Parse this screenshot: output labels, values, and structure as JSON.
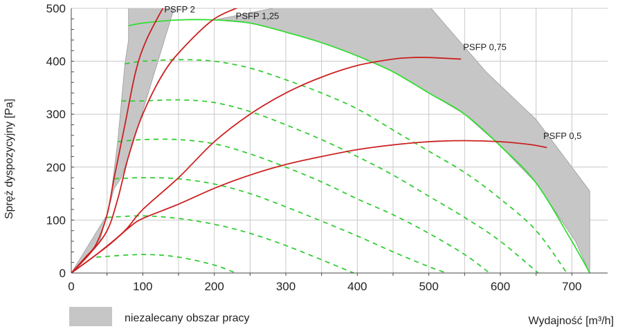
{
  "chart_data": {
    "type": "line",
    "xlabel": "Wydajność [m³/h]",
    "ylabel": "Spręż dyspozycyjny [Pa]",
    "xlim": [
      0,
      750
    ],
    "ylim": [
      0,
      500
    ],
    "x_ticks": [
      "0",
      "100",
      "200",
      "300",
      "400",
      "500",
      "600",
      "700"
    ],
    "y_ticks": [
      "0",
      "100",
      "200",
      "300",
      "400",
      "500"
    ],
    "grid": true,
    "colors": {
      "fan_max": "#33dd33",
      "fan_partial": "#33cc33",
      "psfp": "#cc1f1f",
      "region": "#c6c6c6",
      "grid": "#c8c8c8"
    },
    "legend": {
      "position": "bottom-left",
      "label": "niezalecany obszar pracy"
    },
    "shaded_regions": [
      {
        "name": "niezalecany obszar pracy",
        "points": [
          [
            0,
            0
          ],
          [
            40,
            60
          ],
          [
            55,
            140
          ],
          [
            65,
            250
          ],
          [
            75,
            395
          ],
          [
            80,
            440
          ],
          [
            80,
            505
          ],
          [
            145,
            505
          ],
          [
            85,
            240
          ],
          [
            70,
            180
          ],
          [
            60,
            160
          ],
          [
            50,
            110
          ],
          [
            0,
            0
          ]
        ]
      },
      {
        "name": "niezalecany obszar pracy",
        "points": [
          [
            300,
            505
          ],
          [
            500,
            505
          ],
          [
            580,
            380
          ],
          [
            650,
            290
          ],
          [
            725,
            155
          ],
          [
            725,
            0
          ],
          [
            705,
            60
          ],
          [
            650,
            170
          ],
          [
            600,
            240
          ],
          [
            550,
            300
          ],
          [
            500,
            340
          ],
          [
            450,
            380
          ],
          [
            400,
            410
          ],
          [
            350,
            435
          ],
          [
            300,
            455
          ],
          [
            250,
            472
          ],
          [
            200,
            478
          ]
        ]
      }
    ],
    "series": [
      {
        "style": "solid",
        "color": "#33dd33",
        "points": [
          [
            80,
            467
          ],
          [
            100,
            472
          ],
          [
            150,
            478
          ],
          [
            200,
            478
          ],
          [
            250,
            472
          ],
          [
            300,
            455
          ],
          [
            350,
            435
          ],
          [
            400,
            410
          ],
          [
            450,
            380
          ],
          [
            500,
            340
          ],
          [
            550,
            300
          ],
          [
            600,
            240
          ],
          [
            650,
            170
          ],
          [
            700,
            60
          ],
          [
            725,
            0
          ]
        ]
      },
      {
        "style": "dashed",
        "color": "#33cc33",
        "points": [
          [
            75,
            395
          ],
          [
            100,
            400
          ],
          [
            150,
            403
          ],
          [
            200,
            400
          ],
          [
            250,
            387
          ],
          [
            300,
            365
          ],
          [
            350,
            340
          ],
          [
            400,
            310
          ],
          [
            450,
            270
          ],
          [
            500,
            230
          ],
          [
            550,
            190
          ],
          [
            600,
            140
          ],
          [
            650,
            80
          ],
          [
            693,
            0
          ]
        ]
      },
      {
        "style": "dashed",
        "color": "#33cc33",
        "points": [
          [
            70,
            325
          ],
          [
            100,
            325
          ],
          [
            150,
            327
          ],
          [
            200,
            322
          ],
          [
            250,
            305
          ],
          [
            300,
            280
          ],
          [
            350,
            252
          ],
          [
            400,
            220
          ],
          [
            450,
            185
          ],
          [
            500,
            145
          ],
          [
            550,
            105
          ],
          [
            600,
            60
          ],
          [
            653,
            0
          ]
        ]
      },
      {
        "style": "dashed",
        "color": "#33cc33",
        "points": [
          [
            65,
            248
          ],
          [
            100,
            252
          ],
          [
            150,
            252
          ],
          [
            200,
            244
          ],
          [
            250,
            225
          ],
          [
            300,
            200
          ],
          [
            350,
            172
          ],
          [
            400,
            140
          ],
          [
            450,
            110
          ],
          [
            500,
            75
          ],
          [
            550,
            35
          ],
          [
            585,
            0
          ]
        ]
      },
      {
        "style": "dashed",
        "color": "#33cc33",
        "points": [
          [
            60,
            178
          ],
          [
            100,
            180
          ],
          [
            150,
            178
          ],
          [
            200,
            168
          ],
          [
            250,
            150
          ],
          [
            300,
            125
          ],
          [
            350,
            98
          ],
          [
            400,
            70
          ],
          [
            450,
            40
          ],
          [
            500,
            12
          ],
          [
            525,
            0
          ]
        ]
      },
      {
        "style": "dashed",
        "color": "#33cc33",
        "points": [
          [
            50,
            105
          ],
          [
            100,
            108
          ],
          [
            150,
            103
          ],
          [
            200,
            92
          ],
          [
            250,
            75
          ],
          [
            300,
            52
          ],
          [
            350,
            25
          ],
          [
            395,
            0
          ]
        ]
      },
      {
        "style": "dashed",
        "color": "#33cc33",
        "points": [
          [
            35,
            30
          ],
          [
            100,
            35
          ],
          [
            150,
            30
          ],
          [
            200,
            15
          ],
          [
            230,
            0
          ]
        ]
      },
      {
        "name": "PSFP 2",
        "style": "solid",
        "color": "#cc1f1f",
        "points": [
          [
            0,
            0
          ],
          [
            20,
            30
          ],
          [
            35,
            55
          ],
          [
            50,
            110
          ],
          [
            60,
            180
          ],
          [
            75,
            280
          ],
          [
            90,
            380
          ],
          [
            105,
            440
          ],
          [
            130,
            505
          ]
        ]
      },
      {
        "name": "PSFP 1,25",
        "style": "solid",
        "color": "#cc1f1f",
        "points": [
          [
            0,
            0
          ],
          [
            25,
            35
          ],
          [
            50,
            80
          ],
          [
            65,
            140
          ],
          [
            80,
            220
          ],
          [
            100,
            300
          ],
          [
            130,
            380
          ],
          [
            160,
            430
          ],
          [
            200,
            480
          ],
          [
            240,
            505
          ]
        ]
      },
      {
        "name": "PSFP 0,75",
        "style": "solid",
        "color": "#cc1f1f",
        "points": [
          [
            0,
            0
          ],
          [
            40,
            40
          ],
          [
            75,
            80
          ],
          [
            100,
            120
          ],
          [
            150,
            180
          ],
          [
            200,
            248
          ],
          [
            250,
            300
          ],
          [
            300,
            340
          ],
          [
            350,
            370
          ],
          [
            400,
            392
          ],
          [
            450,
            404
          ],
          [
            480,
            407
          ],
          [
            500,
            407
          ],
          [
            545,
            404
          ]
        ]
      },
      {
        "name": "PSFP 0,5",
        "style": "solid",
        "color": "#cc1f1f",
        "points": [
          [
            0,
            0
          ],
          [
            50,
            50
          ],
          [
            80,
            85
          ],
          [
            100,
            103
          ],
          [
            150,
            130
          ],
          [
            200,
            160
          ],
          [
            250,
            185
          ],
          [
            300,
            205
          ],
          [
            350,
            220
          ],
          [
            400,
            233
          ],
          [
            450,
            242
          ],
          [
            500,
            248
          ],
          [
            550,
            250
          ],
          [
            600,
            248
          ],
          [
            640,
            243
          ],
          [
            665,
            237
          ]
        ]
      }
    ],
    "annotations": [
      {
        "text": "PSFP 2",
        "x": 130,
        "y": 492
      },
      {
        "text": "PSFP 1,25",
        "x": 230,
        "y": 480
      },
      {
        "text": "PSFP 0,75",
        "x": 548,
        "y": 421
      },
      {
        "text": "PSFP 0,5",
        "x": 660,
        "y": 253
      }
    ]
  }
}
